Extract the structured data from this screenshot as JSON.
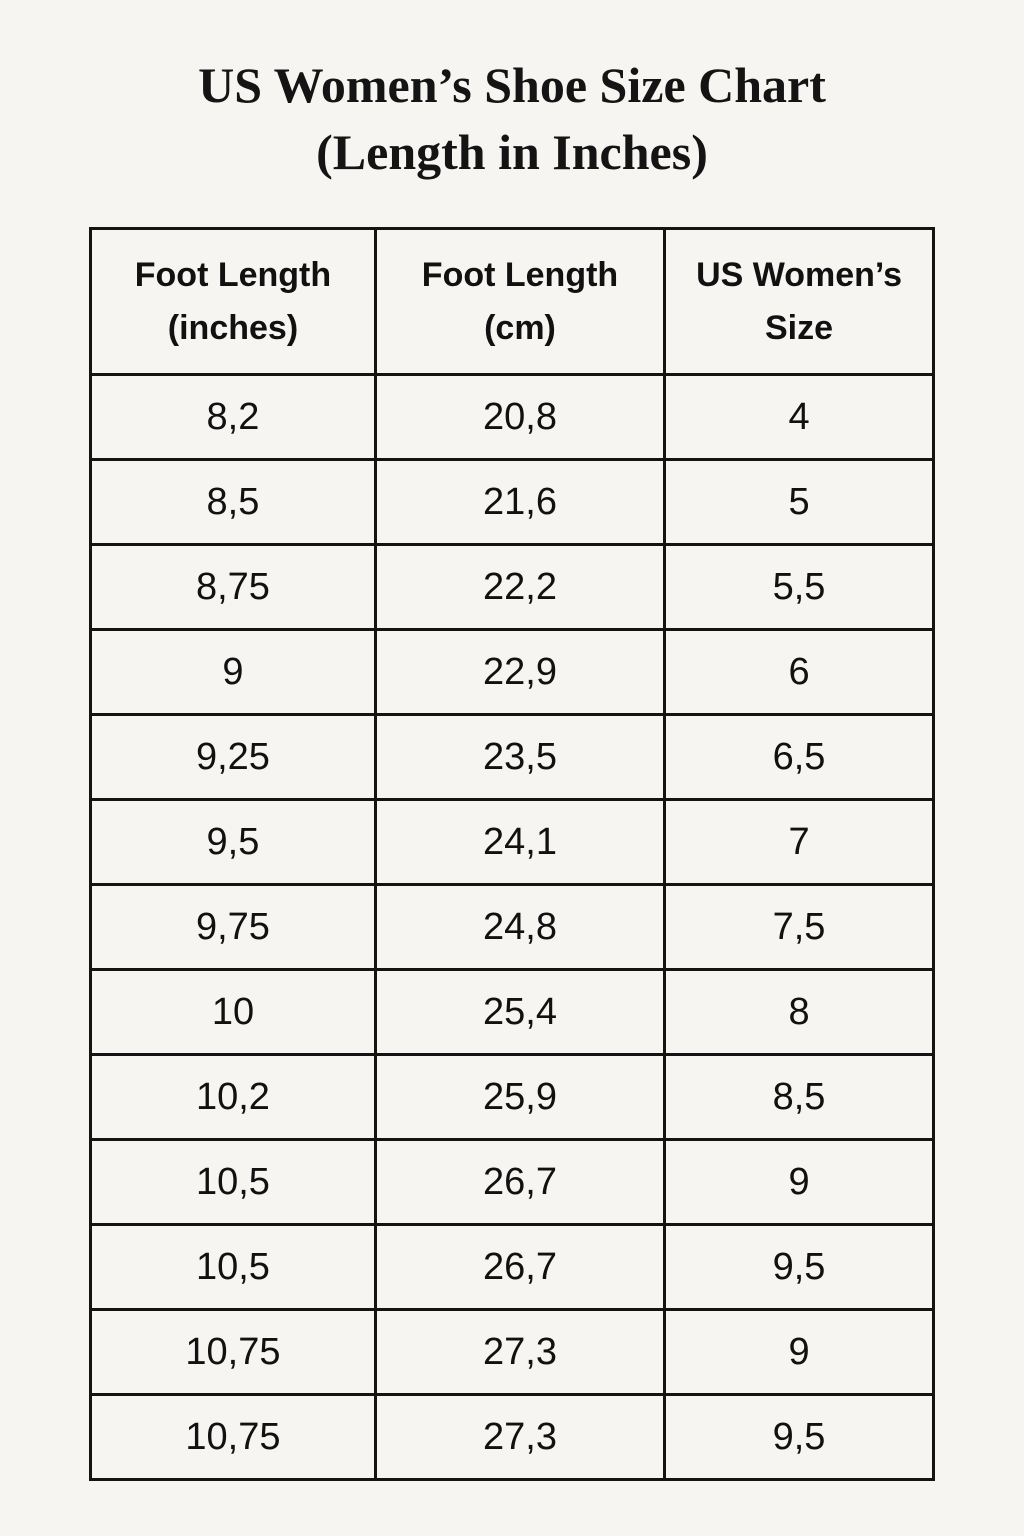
{
  "page": {
    "background": "#f7f5f2",
    "text_color": "#141414",
    "title_line1": "US Women’s Shoe Size Chart",
    "title_line2": "(Length in Inches)"
  },
  "table": {
    "headers": [
      "Foot Length (inches)",
      "Foot Length (cm)",
      "US Women’s Size"
    ],
    "rows": [
      [
        "8,2",
        "20,8",
        "4"
      ],
      [
        "8,5",
        "21,6",
        "5"
      ],
      [
        "8,75",
        "22,2",
        "5,5"
      ],
      [
        "9",
        "22,9",
        "6"
      ],
      [
        "9,25",
        "23,5",
        "6,5"
      ],
      [
        "9,5",
        "24,1",
        "7"
      ],
      [
        "9,75",
        "24,8",
        "7,5"
      ],
      [
        "10",
        "25,4",
        "8"
      ],
      [
        "10,2",
        "25,9",
        "8,5"
      ],
      [
        "10,5",
        "26,7",
        "9"
      ],
      [
        "10,5",
        "26,7",
        "9,5"
      ],
      [
        "10,75",
        "27,3",
        "9"
      ],
      [
        "10,75",
        "27,3",
        "9,5"
      ]
    ]
  },
  "chart_data": {
    "type": "table",
    "title": "US Women’s Shoe Size Chart (Length in Inches)",
    "columns": [
      "Foot Length (inches)",
      "Foot Length (cm)",
      "US Women’s Size"
    ],
    "rows": [
      [
        "8,2",
        "20,8",
        "4"
      ],
      [
        "8,5",
        "21,6",
        "5"
      ],
      [
        "8,75",
        "22,2",
        "5,5"
      ],
      [
        "9",
        "22,9",
        "6"
      ],
      [
        "9,25",
        "23,5",
        "6,5"
      ],
      [
        "9,5",
        "24,1",
        "7"
      ],
      [
        "9,75",
        "24,8",
        "7,5"
      ],
      [
        "10",
        "25,4",
        "8"
      ],
      [
        "10,2",
        "25,9",
        "8,5"
      ],
      [
        "10,5",
        "26,7",
        "9"
      ],
      [
        "10,5",
        "26,7",
        "9,5"
      ],
      [
        "10,75",
        "27,3",
        "9"
      ],
      [
        "10,75",
        "27,3",
        "9,5"
      ]
    ]
  }
}
